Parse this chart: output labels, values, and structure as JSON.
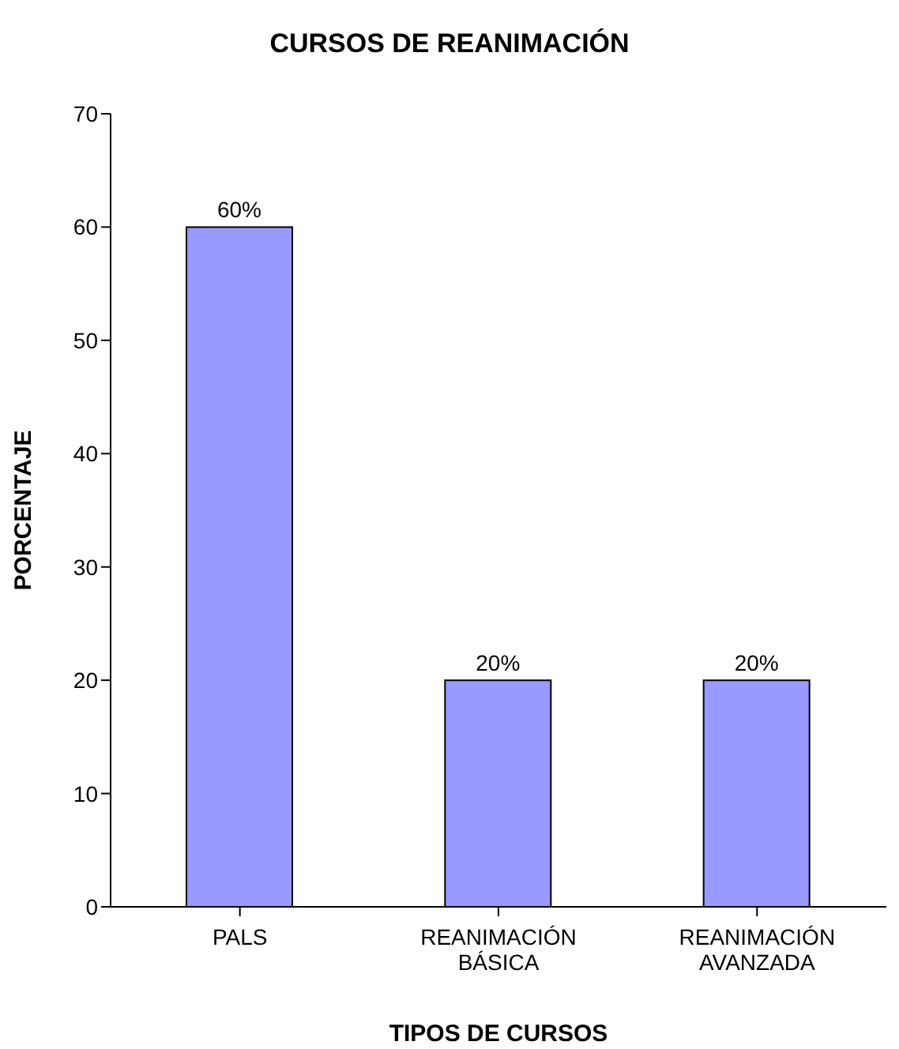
{
  "chart_data": {
    "type": "bar",
    "title": "CURSOS DE REANIMACIÓN",
    "xlabel": "TIPOS DE CURSOS",
    "ylabel": "PORCENTAJE",
    "categories": [
      "PALS",
      "REANIMACIÓN BÁSICA",
      "REANIMACIÓN AVANZADA"
    ],
    "values": [
      60,
      20,
      20
    ],
    "value_labels": [
      "60%",
      "20%",
      "20%"
    ],
    "color": "#9999ff",
    "ylim": [
      0,
      70
    ],
    "yticks": [
      0,
      10,
      20,
      30,
      40,
      50,
      60,
      70
    ],
    "grid": false
  }
}
